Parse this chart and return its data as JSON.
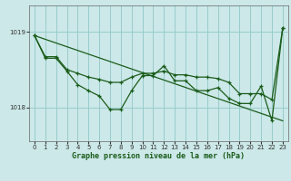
{
  "title": "Graphe pression niveau de la mer (hPa)",
  "bg_color": "#cce8e8",
  "grid_color": "#99cccc",
  "line_color": "#1a5c1a",
  "ylim": [
    1017.55,
    1019.35
  ],
  "xlim": [
    -0.5,
    23.5
  ],
  "yticks": [
    1018,
    1019
  ],
  "xticks": [
    0,
    1,
    2,
    3,
    4,
    5,
    6,
    7,
    8,
    9,
    10,
    11,
    12,
    13,
    14,
    15,
    16,
    17,
    18,
    19,
    20,
    21,
    22,
    23
  ],
  "straight_line": {
    "x": [
      0,
      23
    ],
    "y": [
      1018.95,
      1017.82
    ]
  },
  "measured": [
    1018.95,
    1018.65,
    1018.65,
    1018.48,
    1018.3,
    1018.22,
    1018.15,
    1017.97,
    1017.97,
    1018.22,
    1018.42,
    1018.42,
    1018.55,
    1018.35,
    1018.35,
    1018.22,
    1018.22,
    1018.26,
    1018.12,
    1018.05,
    1018.05,
    1018.28,
    1017.82,
    1019.05
  ],
  "smooth": [
    1018.95,
    1018.67,
    1018.67,
    1018.5,
    1018.45,
    1018.4,
    1018.37,
    1018.33,
    1018.33,
    1018.4,
    1018.45,
    1018.45,
    1018.48,
    1018.43,
    1018.43,
    1018.4,
    1018.4,
    1018.38,
    1018.33,
    1018.18,
    1018.18,
    1018.18,
    1018.1,
    1019.05
  ]
}
